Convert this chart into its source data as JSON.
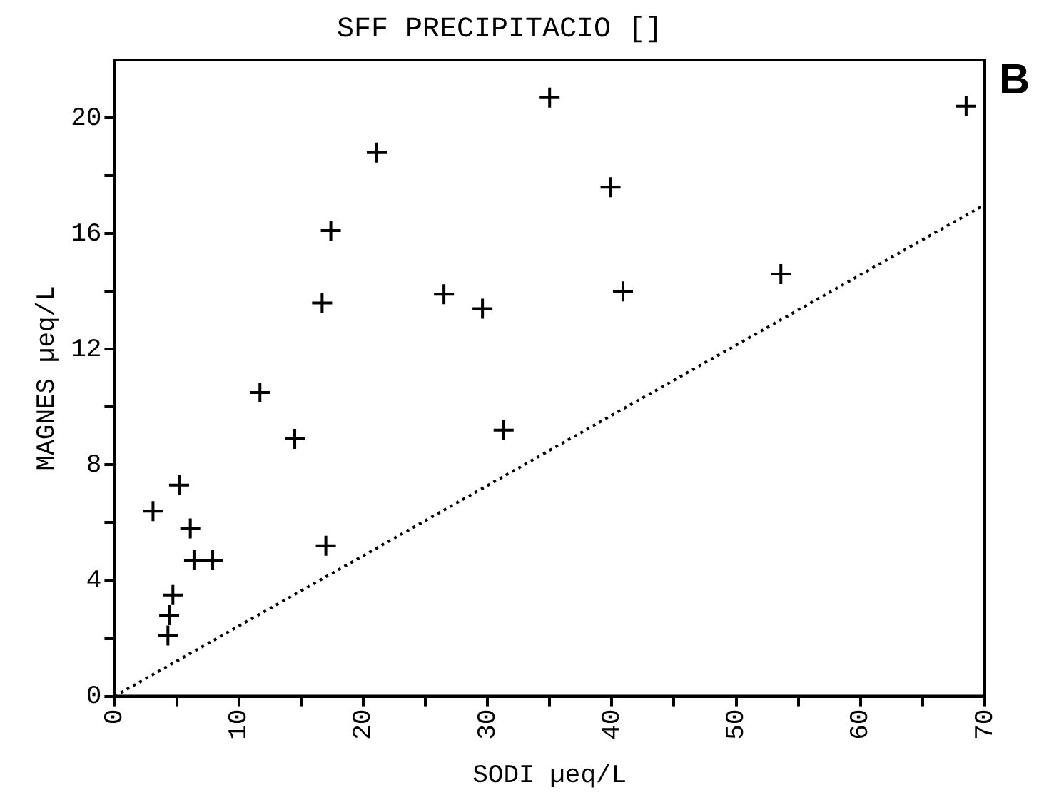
{
  "chart_data": {
    "type": "scatter",
    "title": "SFF PRECIPITACIO []",
    "xlabel": "SODI µeq/L",
    "ylabel": "MAGNES µeq/L",
    "annotations": [
      "B"
    ],
    "xlim": [
      0,
      70
    ],
    "ylim": [
      0,
      22
    ],
    "xticks": [
      0,
      {
        "value": 5,
        "label": null
      },
      10,
      {
        "value": 15,
        "label": null
      },
      20,
      {
        "value": 25,
        "label": null
      },
      30,
      {
        "value": 35,
        "label": null
      },
      40,
      {
        "value": 45,
        "label": null
      },
      50,
      {
        "value": 55,
        "label": null
      },
      60,
      {
        "value": 65,
        "label": null
      },
      70
    ],
    "yticks": [
      0,
      {
        "value": 2,
        "label": null
      },
      4,
      {
        "value": 6,
        "label": null
      },
      8,
      {
        "value": 10,
        "label": null
      },
      12,
      {
        "value": 14,
        "label": null
      },
      16,
      {
        "value": 18,
        "label": null
      },
      20
    ],
    "grid": false,
    "legend": false,
    "marker": "cross",
    "color": "#000000",
    "x": [
      3.1,
      5.2,
      6.1,
      6.4,
      7.9,
      4.7,
      4.4,
      4.3,
      11.7,
      14.5,
      17.0,
      16.7,
      17.4,
      21.1,
      26.5,
      29.6,
      31.3,
      35.0,
      39.9,
      40.9,
      53.6,
      68.5
    ],
    "values": [
      6.4,
      7.3,
      5.8,
      4.7,
      4.7,
      3.5,
      2.8,
      2.1,
      10.5,
      8.9,
      5.2,
      13.6,
      16.1,
      18.8,
      13.9,
      13.4,
      9.2,
      20.7,
      17.6,
      14.0,
      14.6,
      20.4
    ],
    "series": [
      {
        "type": "line",
        "color": "#000000",
        "line_style": "dotted",
        "marker": "none",
        "x": [
          0,
          70
        ],
        "values": [
          0,
          17
        ]
      }
    ]
  }
}
